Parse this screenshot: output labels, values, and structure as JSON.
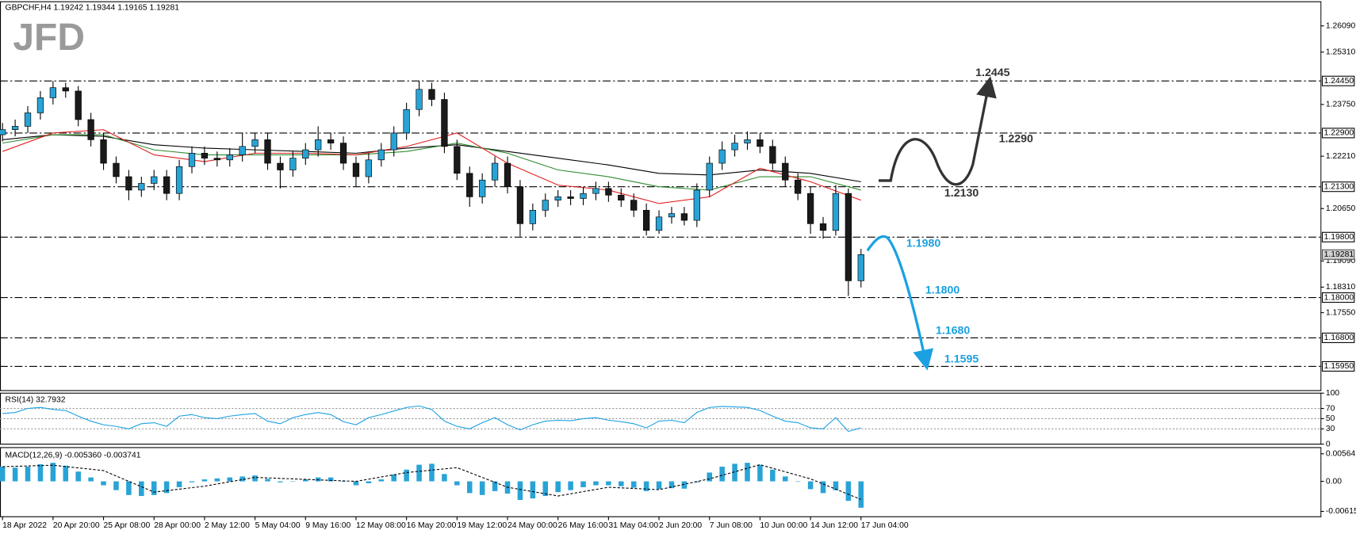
{
  "chart_data": [
    {
      "type": "candlestick",
      "title": "GBPCHF,H4  1.19242 1.19344 1.19165 1.19281",
      "logo": "JFD",
      "xlim": [
        -0.2,
        104.4
      ],
      "xticks": [
        {
          "value": 0,
          "label": "18 Apr 2022"
        },
        {
          "value": 4,
          "label": "20 Apr 20:00"
        },
        {
          "value": 8,
          "label": "25 Apr 08:00"
        },
        {
          "value": 12,
          "label": "28 Apr 00:00"
        },
        {
          "value": 16,
          "label": "2 May 12:00"
        },
        {
          "value": 20,
          "label": "5 May 04:00"
        },
        {
          "value": 24,
          "label": "9 May 16:00"
        },
        {
          "value": 28,
          "label": "12 May 08:00"
        },
        {
          "value": 32,
          "label": "16 May 20:00"
        },
        {
          "value": 36,
          "label": "19 May 12:00"
        },
        {
          "value": 40,
          "label": "24 May 00:00"
        },
        {
          "value": 44,
          "label": "26 May 16:00"
        },
        {
          "value": 48,
          "label": "31 May 04:00"
        },
        {
          "value": 52,
          "label": "2 Jun 20:00"
        },
        {
          "value": 56,
          "label": "7 Jun 08:00"
        },
        {
          "value": 60,
          "label": "10 Jun 00:00"
        },
        {
          "value": 64,
          "label": "14 Jun 12:00"
        },
        {
          "value": 68,
          "label": "17 Jun 04:00"
        }
      ],
      "ylim": [
        1.1523,
        1.2681
      ],
      "yticks": [
        {
          "value": 1.2609,
          "label": "1.26090"
        },
        {
          "value": 1.2531,
          "label": "1.25310"
        },
        {
          "value": 1.2375,
          "label": "1.23750"
        },
        {
          "value": 1.2221,
          "label": "1.22210"
        },
        {
          "value": 1.2065,
          "label": "1.20650"
        },
        {
          "value": 1.1909,
          "label": "1.19090"
        },
        {
          "value": 1.1831,
          "label": "1.18310"
        },
        {
          "value": 1.1755,
          "label": "1.17550"
        }
      ],
      "levels": [
        {
          "value": 1.2445,
          "label": "1.24450",
          "note": "1.2445",
          "color": "#333333"
        },
        {
          "value": 1.229,
          "label": "1.22900",
          "note": "1.2290",
          "color": "#333333"
        },
        {
          "value": 1.213,
          "label": "1.21300",
          "note": "1.2130",
          "color": "#333333"
        },
        {
          "value": 1.198,
          "label": "1.19800",
          "note": "1.1980",
          "color": "#1ba1e2"
        },
        {
          "value": 1.18,
          "label": "1.18000",
          "note": "1.1800",
          "color": "#1ba1e2"
        },
        {
          "value": 1.168,
          "label": "1.16800",
          "note": "1.1680",
          "color": "#1ba1e2"
        },
        {
          "value": 1.1595,
          "label": "1.15950",
          "note": "1.1595",
          "color": "#1ba1e2"
        }
      ],
      "last_price": {
        "value": 1.19281,
        "label": "1.19281"
      },
      "up_color": "#29a3d6",
      "down_color": "#1a1a1a",
      "open": [
        1.2285,
        1.23,
        1.231,
        1.235,
        1.2395,
        1.2425,
        1.2415,
        1.233,
        1.227,
        1.22,
        1.216,
        1.212,
        1.214,
        1.216,
        1.211,
        1.219,
        1.223,
        1.2215,
        1.221,
        1.2225,
        1.225,
        1.227,
        1.22,
        1.218,
        1.2215,
        1.224,
        1.227,
        1.226,
        1.22,
        1.216,
        1.221,
        1.224,
        1.229,
        1.236,
        1.242,
        1.239,
        1.225,
        1.217,
        1.21,
        1.215,
        1.22,
        1.213,
        1.202,
        1.206,
        1.209,
        1.21,
        1.2095,
        1.211,
        1.2125,
        1.2105,
        1.209,
        1.206,
        1.2,
        1.204,
        1.205,
        1.203,
        1.212,
        1.22,
        1.224,
        1.226,
        1.227,
        1.225,
        1.22,
        1.215,
        1.211,
        1.202,
        1.2,
        1.211,
        1.185
      ],
      "high": [
        1.232,
        1.233,
        1.237,
        1.2415,
        1.2445,
        1.244,
        1.243,
        1.235,
        1.229,
        1.222,
        1.218,
        1.216,
        1.218,
        1.218,
        1.221,
        1.225,
        1.225,
        1.2235,
        1.2245,
        1.229,
        1.229,
        1.229,
        1.222,
        1.2235,
        1.226,
        1.231,
        1.229,
        1.228,
        1.222,
        1.223,
        1.226,
        1.231,
        1.238,
        1.2445,
        1.244,
        1.241,
        1.227,
        1.219,
        1.217,
        1.222,
        1.222,
        1.215,
        1.208,
        1.211,
        1.212,
        1.212,
        1.213,
        1.2145,
        1.2145,
        1.2125,
        1.211,
        1.208,
        1.206,
        1.207,
        1.207,
        1.214,
        1.222,
        1.2265,
        1.2285,
        1.2295,
        1.229,
        1.227,
        1.222,
        1.217,
        1.213,
        1.204,
        1.2135,
        1.2125,
        1.1945
      ],
      "low": [
        1.2265,
        1.228,
        1.229,
        1.233,
        1.2375,
        1.2395,
        1.231,
        1.225,
        1.218,
        1.214,
        1.209,
        1.21,
        1.212,
        1.209,
        1.209,
        1.217,
        1.2195,
        1.219,
        1.219,
        1.2205,
        1.223,
        1.218,
        1.2125,
        1.216,
        1.2195,
        1.222,
        1.224,
        1.218,
        1.213,
        1.214,
        1.219,
        1.222,
        1.227,
        1.234,
        1.237,
        1.223,
        1.215,
        1.207,
        1.208,
        1.213,
        1.211,
        1.1982,
        1.2,
        1.204,
        1.207,
        1.2075,
        1.2075,
        1.209,
        1.2085,
        1.207,
        1.204,
        1.1985,
        1.199,
        1.202,
        1.2015,
        1.201,
        1.21,
        1.218,
        1.222,
        1.224,
        1.223,
        1.218,
        1.213,
        1.209,
        1.199,
        1.1975,
        1.1985,
        1.1805,
        1.183
      ],
      "close": [
        1.23,
        1.231,
        1.235,
        1.2395,
        1.2425,
        1.2415,
        1.233,
        1.227,
        1.22,
        1.216,
        1.212,
        1.214,
        1.216,
        1.211,
        1.219,
        1.223,
        1.2215,
        1.221,
        1.2225,
        1.225,
        1.227,
        1.22,
        1.218,
        1.2215,
        1.224,
        1.227,
        1.226,
        1.22,
        1.216,
        1.221,
        1.224,
        1.229,
        1.236,
        1.242,
        1.239,
        1.225,
        1.217,
        1.21,
        1.215,
        1.22,
        1.213,
        1.202,
        1.206,
        1.209,
        1.21,
        1.2095,
        1.211,
        1.2125,
        1.2105,
        1.209,
        1.206,
        1.2,
        1.204,
        1.205,
        1.203,
        1.212,
        1.22,
        1.224,
        1.226,
        1.227,
        1.225,
        1.22,
        1.215,
        1.211,
        1.202,
        1.2,
        1.211,
        1.185,
        1.1928
      ],
      "series": [
        {
          "color": "#000000",
          "x": [
            0,
            4,
            8,
            12,
            16,
            20,
            24,
            28,
            32,
            36,
            40,
            44,
            48,
            52,
            56,
            60,
            64,
            68
          ],
          "values": [
            1.227,
            1.2285,
            1.228,
            1.2255,
            1.2245,
            1.224,
            1.2235,
            1.223,
            1.2245,
            1.2255,
            1.2235,
            1.2215,
            1.2195,
            1.217,
            1.2165,
            1.218,
            1.217,
            1.2145
          ]
        },
        {
          "color": "#2e8b2e",
          "x": [
            0,
            4,
            8,
            12,
            16,
            20,
            24,
            28,
            32,
            36,
            40,
            44,
            48,
            52,
            56,
            60,
            64,
            68
          ],
          "values": [
            1.226,
            1.2285,
            1.2285,
            1.224,
            1.2225,
            1.2225,
            1.2225,
            1.2225,
            1.2235,
            1.226,
            1.223,
            1.218,
            1.216,
            1.213,
            1.212,
            1.216,
            1.216,
            1.212
          ]
        },
        {
          "color": "#e02020",
          "x": [
            0,
            4,
            8,
            12,
            16,
            20,
            24,
            28,
            32,
            36,
            40,
            44,
            48,
            52,
            56,
            60,
            64,
            68
          ],
          "values": [
            1.2235,
            1.229,
            1.23,
            1.2225,
            1.2205,
            1.223,
            1.223,
            1.2225,
            1.225,
            1.229,
            1.22,
            1.2135,
            1.212,
            1.208,
            1.21,
            1.2185,
            1.2145,
            1.209
          ]
        }
      ]
    },
    {
      "type": "line",
      "title": "RSI(14) 32.7932",
      "xlim": [
        -0.2,
        104.4
      ],
      "ylim": [
        0,
        100
      ],
      "yticks": [
        100,
        70,
        50,
        30,
        0
      ],
      "levels": [
        70,
        50,
        30
      ],
      "color": "#1ba1e2",
      "values": [
        60,
        62,
        70,
        72,
        68,
        66,
        55,
        45,
        38,
        35,
        30,
        40,
        42,
        35,
        55,
        58,
        52,
        50,
        55,
        58,
        60,
        45,
        40,
        52,
        58,
        62,
        58,
        44,
        38,
        52,
        58,
        65,
        72,
        75,
        68,
        45,
        35,
        30,
        42,
        52,
        38,
        28,
        38,
        45,
        47,
        46,
        50,
        52,
        47,
        44,
        40,
        32,
        45,
        47,
        42,
        62,
        72,
        74,
        73,
        72,
        66,
        55,
        45,
        42,
        32,
        30,
        52,
        25,
        32
      ]
    },
    {
      "type": "bar",
      "title": "MACD(12,26,9) -0.005360 -0.003741",
      "xlim": [
        -0.2,
        104.4
      ],
      "ylim": [
        -0.00724,
        0.00691
      ],
      "yticks": [
        0.00564,
        {
          "value": 0,
          "label": "0.00"
        },
        -0.00615
      ],
      "color": "#29a3d6",
      "values": [
        0.003,
        0.0028,
        0.003,
        0.0035,
        0.0038,
        0.0032,
        0.002,
        0.0008,
        -0.0008,
        -0.0018,
        -0.0028,
        -0.003,
        -0.0028,
        -0.0024,
        -0.0012,
        -0.0002,
        0.0004,
        0.0006,
        0.0008,
        0.001,
        0.0012,
        0.0005,
        -0.0002,
        0,
        0.0004,
        0.0008,
        0.0008,
        0,
        -0.0008,
        -0.0004,
        0.0004,
        0.0014,
        0.0024,
        0.0034,
        0.0036,
        0.0015,
        -0.0008,
        -0.0024,
        -0.0028,
        -0.002,
        -0.0025,
        -0.0038,
        -0.0035,
        -0.003,
        -0.0022,
        -0.0018,
        -0.0012,
        -0.0008,
        -0.0008,
        -0.001,
        -0.0013,
        -0.002,
        -0.0016,
        -0.0014,
        -0.0015,
        -0.0002,
        0.0018,
        0.003,
        0.0036,
        0.0038,
        0.0034,
        0.0024,
        0.001,
        0,
        -0.0016,
        -0.0024,
        -0.0018,
        -0.004,
        -0.0054
      ],
      "signal": {
        "color": "#000000",
        "x": [
          0,
          4,
          8,
          12,
          16,
          20,
          24,
          28,
          32,
          36,
          40,
          44,
          48,
          52,
          56,
          60,
          64,
          68
        ],
        "values": [
          0.003,
          0.0033,
          0.0022,
          -0.0022,
          -0.001,
          0.0008,
          0.0004,
          0,
          0.0018,
          0.0028,
          -0.0012,
          -0.003,
          -0.0012,
          -0.0017,
          0.0005,
          0.0034,
          0.0005,
          -0.0037
        ]
      }
    }
  ]
}
